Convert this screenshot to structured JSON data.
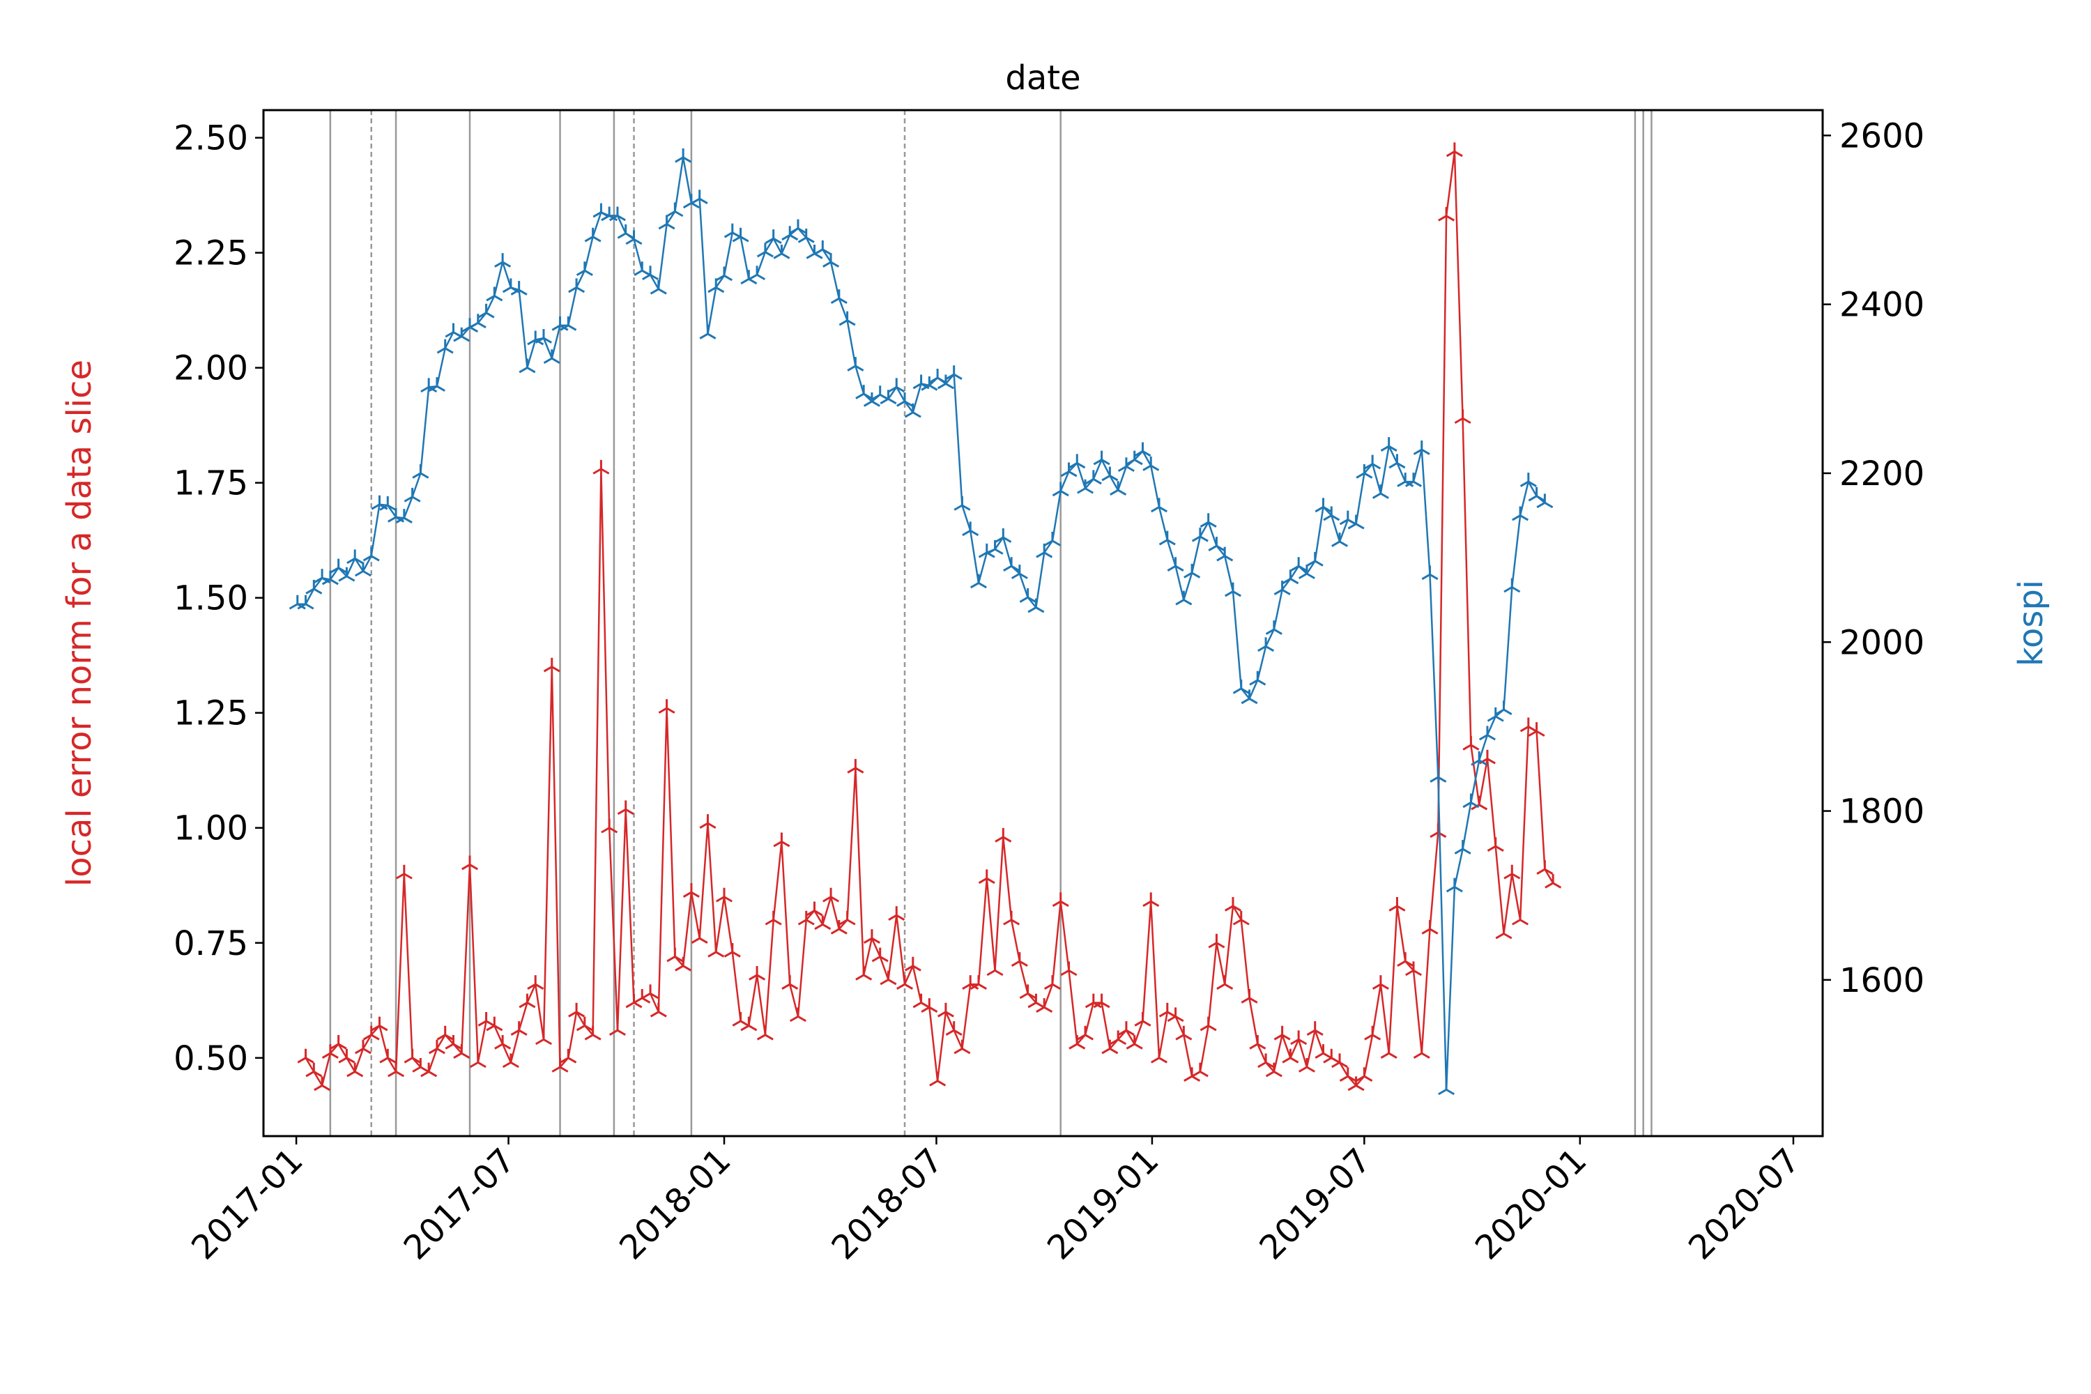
{
  "chart_data": {
    "type": "line",
    "title": "date",
    "xlabel": "",
    "ylabel_left": "local error norm for a data slice",
    "ylabel_right": "kospi",
    "colors": {
      "left": "#d62728",
      "right": "#1f77b4",
      "vlines": "#999999"
    },
    "x_ticks": [
      "2017-01",
      "2017-07",
      "2018-01",
      "2018-07",
      "2019-01",
      "2019-07",
      "2020-01",
      "2020-07"
    ],
    "y_left_ticks": [
      "0.50",
      "0.75",
      "1.00",
      "1.25",
      "1.50",
      "1.75",
      "2.00",
      "2.25",
      "2.50"
    ],
    "y_right_ticks": [
      "1600",
      "1800",
      "2000",
      "2200",
      "2400",
      "2600"
    ],
    "xlim": [
      "2016-12-04",
      "2020-07-26"
    ],
    "ylim_left": [
      0.33,
      2.56
    ],
    "ylim_right": [
      1415,
      2630
    ],
    "marker": "tri-star",
    "grid": false,
    "vlines": [
      {
        "date": "2017-01-30",
        "style": "solid"
      },
      {
        "date": "2017-03-06",
        "style": "dashed"
      },
      {
        "date": "2017-03-27",
        "style": "solid"
      },
      {
        "date": "2017-05-29",
        "style": "solid"
      },
      {
        "date": "2017-08-14",
        "style": "solid"
      },
      {
        "date": "2017-09-29",
        "style": "solid"
      },
      {
        "date": "2017-10-16",
        "style": "dashed"
      },
      {
        "date": "2017-12-04",
        "style": "solid"
      },
      {
        "date": "2018-06-04",
        "style": "dashed"
      },
      {
        "date": "2018-10-15",
        "style": "solid"
      },
      {
        "date": "2020-02-17",
        "style": "solid"
      },
      {
        "date": "2020-02-24",
        "style": "solid"
      },
      {
        "date": "2020-03-02",
        "style": "solid"
      }
    ],
    "series": [
      {
        "axis": "left",
        "start": "2017-01-09",
        "step_days": 7,
        "values": [
          0.5,
          0.47,
          0.44,
          0.51,
          0.53,
          0.5,
          0.47,
          0.52,
          0.55,
          0.57,
          0.5,
          0.47,
          0.9,
          0.5,
          0.48,
          0.47,
          0.52,
          0.55,
          0.53,
          0.51,
          0.92,
          0.49,
          0.58,
          0.57,
          0.53,
          0.49,
          0.56,
          0.62,
          0.66,
          0.54,
          1.35,
          0.48,
          0.5,
          0.6,
          0.57,
          0.55,
          1.78,
          1.0,
          0.56,
          1.04,
          0.62,
          0.63,
          0.64,
          0.6,
          1.26,
          0.72,
          0.7,
          0.86,
          0.76,
          1.01,
          0.73,
          0.85,
          0.73,
          0.58,
          0.57,
          0.68,
          0.55,
          0.8,
          0.97,
          0.66,
          0.59,
          0.8,
          0.82,
          0.79,
          0.85,
          0.78,
          0.8,
          1.13,
          0.68,
          0.76,
          0.72,
          0.67,
          0.81,
          0.66,
          0.7,
          0.62,
          0.61,
          0.45,
          0.6,
          0.56,
          0.52,
          0.66,
          0.66,
          0.89,
          0.69,
          0.98,
          0.8,
          0.71,
          0.64,
          0.62,
          0.61,
          0.66,
          0.84,
          0.69,
          0.53,
          0.55,
          0.62,
          0.62,
          0.52,
          0.54,
          0.56,
          0.53,
          0.58,
          0.84,
          0.5,
          0.6,
          0.59,
          0.55,
          0.46,
          0.47,
          0.57,
          0.75,
          0.66,
          0.83,
          0.8,
          0.63,
          0.53,
          0.49,
          0.47,
          0.55,
          0.5,
          0.54,
          0.48,
          0.56,
          0.51,
          0.5,
          0.49,
          0.46,
          0.44,
          0.46,
          0.55,
          0.66,
          0.51,
          0.83,
          0.71,
          0.69,
          0.51,
          0.78,
          0.99,
          2.33,
          2.47,
          1.89,
          1.18,
          1.05,
          1.15,
          0.96,
          0.77,
          0.9,
          0.8,
          1.22,
          1.21,
          0.91,
          0.88
        ]
      },
      {
        "axis": "right",
        "start": "2017-01-02",
        "step_days": 7,
        "values": [
          2045,
          2045,
          2063,
          2076,
          2074,
          2088,
          2078,
          2099,
          2084,
          2102,
          2163,
          2162,
          2148,
          2147,
          2172,
          2200,
          2302,
          2303,
          2348,
          2367,
          2362,
          2373,
          2378,
          2390,
          2410,
          2450,
          2420,
          2417,
          2325,
          2358,
          2360,
          2336,
          2375,
          2375,
          2420,
          2440,
          2480,
          2509,
          2505,
          2505,
          2484,
          2477,
          2440,
          2435,
          2418,
          2495,
          2510,
          2574,
          2520,
          2525,
          2365,
          2420,
          2434,
          2485,
          2480,
          2430,
          2435,
          2462,
          2478,
          2460,
          2482,
          2490,
          2479,
          2460,
          2465,
          2450,
          2407,
          2381,
          2327,
          2294,
          2285,
          2293,
          2288,
          2302,
          2285,
          2272,
          2306,
          2304,
          2313,
          2306,
          2317,
          2162,
          2132,
          2070,
          2106,
          2110,
          2124,
          2090,
          2081,
          2053,
          2041,
          2106,
          2120,
          2179,
          2202,
          2212,
          2182,
          2193,
          2216,
          2197,
          2180,
          2208,
          2216,
          2226,
          2209,
          2160,
          2121,
          2090,
          2050,
          2082,
          2125,
          2142,
          2114,
          2102,
          2060,
          1945,
          1933,
          1955,
          1995,
          2015,
          2062,
          2075,
          2090,
          2081,
          2096,
          2160,
          2150,
          2119,
          2145,
          2140,
          2200,
          2211,
          2176,
          2232,
          2212,
          2190,
          2190,
          2228,
          2080,
          1840,
          1470,
          1710,
          1755,
          1810,
          1860,
          1890,
          1912,
          1920,
          2065,
          2150,
          2190,
          2173,
          2165
        ]
      }
    ]
  }
}
